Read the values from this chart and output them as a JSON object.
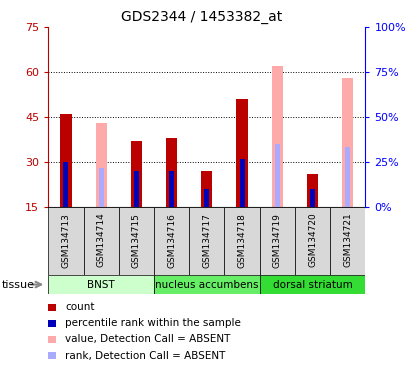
{
  "title": "GDS2344 / 1453382_at",
  "samples": [
    "GSM134713",
    "GSM134714",
    "GSM134715",
    "GSM134716",
    "GSM134717",
    "GSM134718",
    "GSM134719",
    "GSM134720",
    "GSM134721"
  ],
  "red_values": [
    46,
    0,
    37,
    38,
    27,
    51,
    0,
    26,
    0
  ],
  "pink_values": [
    0,
    43,
    0,
    0,
    0,
    0,
    62,
    0,
    58
  ],
  "blue_values": [
    30,
    0,
    27,
    27,
    21,
    31,
    0,
    21,
    0
  ],
  "light_blue_values": [
    0,
    28,
    0,
    0,
    0,
    0,
    36,
    0,
    35
  ],
  "ylim_left": [
    15,
    75
  ],
  "ylim_right": [
    0,
    100
  ],
  "yticks_left": [
    15,
    30,
    45,
    60,
    75
  ],
  "yticks_right": [
    0,
    25,
    50,
    75,
    100
  ],
  "ytick_labels_left": [
    "15",
    "30",
    "45",
    "60",
    "75"
  ],
  "ytick_labels_right": [
    "0%",
    "25%",
    "50%",
    "75%",
    "100%"
  ],
  "gridlines": [
    30,
    45,
    60
  ],
  "tissue_colors": [
    "#ccffcc",
    "#66ee66",
    "#33dd33"
  ],
  "tissue_labels": [
    "BNST",
    "nucleus accumbens",
    "dorsal striatum"
  ],
  "tissue_starts": [
    0,
    3,
    6
  ],
  "tissue_ends": [
    3,
    6,
    9
  ],
  "bar_width": 0.32,
  "red_color": "#bb0000",
  "pink_color": "#ffaaaa",
  "blue_color": "#0000bb",
  "light_blue_color": "#aaaaff",
  "legend_items": [
    {
      "color": "#bb0000",
      "label": "count"
    },
    {
      "color": "#0000bb",
      "label": "percentile rank within the sample"
    },
    {
      "color": "#ffaaaa",
      "label": "value, Detection Call = ABSENT"
    },
    {
      "color": "#aaaaff",
      "label": "rank, Detection Call = ABSENT"
    }
  ],
  "tissue_label": "tissue",
  "bg_color": "#d8d8d8"
}
